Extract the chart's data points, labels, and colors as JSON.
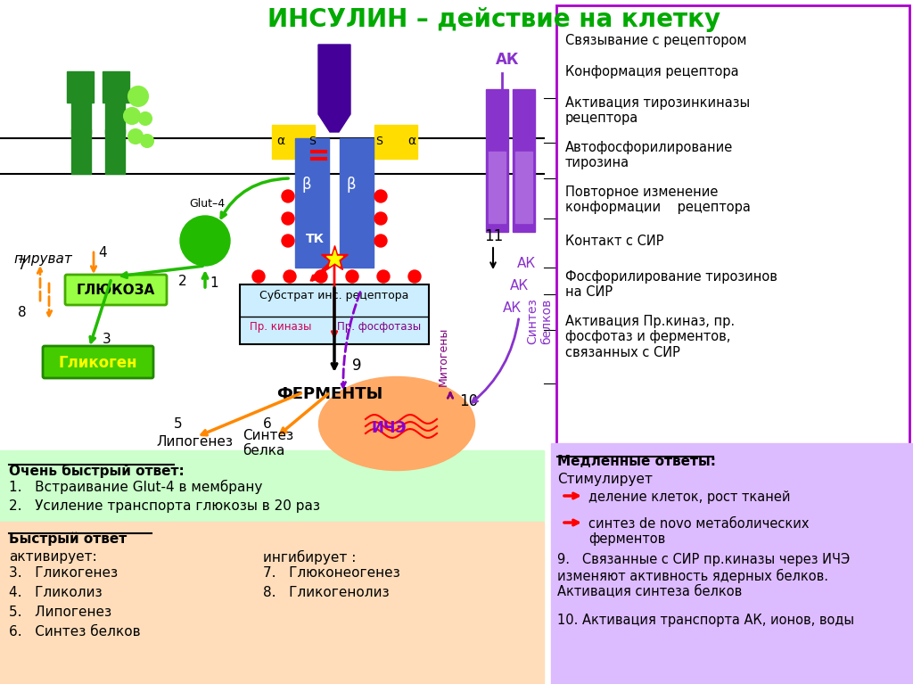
{
  "title": "ИНСУЛИН – действие на клетку",
  "title_color": "#00aa00",
  "bg_color": "#ffffff",
  "right_box_color": "#aa00cc",
  "right_box_bg": "#ffffff",
  "right_box_items": [
    "Связывание с рецептором",
    "Конформация рецептора",
    "Активация тирозинкиназы\nрецептора",
    "Автофосфорилирование\nтирозина",
    "Повторное изменение\nконформации    рецептора",
    "Контакт с СИР",
    "Фосфорилирование тирозинов\nна СИР",
    "Активация Пр.киназ, пр.\nфосфотаз и ферментов,\nсвязанных с СИР"
  ],
  "bottom_left1_bg": "#ccffcc",
  "bottom_left2_bg": "#ffddbb",
  "bottom_right_bg": "#ddbbff",
  "bottom_left_title1": "Очень быстрый ответ:",
  "bottom_left_items1": [
    "1.   Встраивание Glut-4 в мембрану",
    "2.   Усиление транспорта глюкозы в 20 раз"
  ],
  "bottom_left_title2": "Быстрый ответ",
  "bottom_left_subtitle2a": "активирует:",
  "bottom_left_items2a": [
    "3.   Гликогенез",
    "4.   Гликолиз",
    "5.   Липогенез",
    "6.   Синтез белков"
  ],
  "bottom_left_subtitle2b": "ингибирует :",
  "bottom_left_items2b": [
    "7.   Глюконеогенез",
    "8.   Гликогенолиз"
  ],
  "bottom_right_title": "Медленные ответы:",
  "bottom_right_stim": "Стимулирует",
  "bottom_right_arrow1": "деление клеток, рост тканей",
  "bottom_right_arrow2": "синтез de novo метаболических\nферментов",
  "bottom_right_9": "9.   Связанные с СИР пр.киназы через ИЧЭ\nизменяют активность ядерных белков.\nАктивация синтеза белков",
  "bottom_right_10": "10. Активация транспорта АК, ионов, воды"
}
